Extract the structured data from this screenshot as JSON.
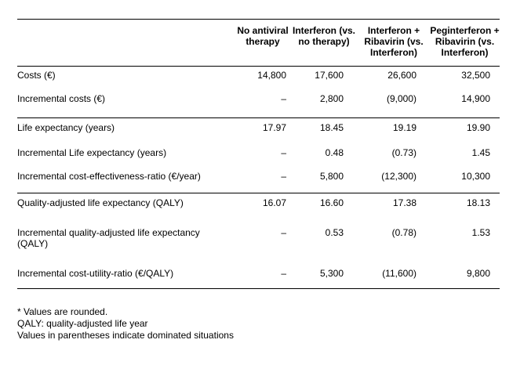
{
  "table": {
    "headers": [
      "",
      "No antiviral therapy",
      "Interferon (vs. no therapy)",
      "Interferon + Ribavirin (vs. Interferon)",
      "Peginterferon + Ribavirin (vs. Interferon)"
    ],
    "rows": [
      {
        "label": "Costs (€)",
        "values": [
          "14,800",
          "17,600",
          "26,600",
          "32,500"
        ]
      },
      {
        "label": "Incremental costs (€)",
        "values": [
          "–",
          "2,800",
          "(9,000)",
          "14,900"
        ]
      },
      {
        "label": "Life expectancy (years)",
        "values": [
          "17.97",
          "18.45",
          "19.19",
          "19.90"
        ]
      },
      {
        "label": "Incremental Life expectancy (years)",
        "values": [
          "–",
          "0.48",
          "(0.73)",
          "1.45"
        ]
      },
      {
        "label": "Incremental cost-effectiveness-ratio (€/year)",
        "values": [
          "–",
          "5,800",
          "(12,300)",
          "10,300"
        ]
      },
      {
        "label": "Quality-adjusted life expectancy (QALY)",
        "values": [
          "16.07",
          "16.60",
          "17.38",
          "18.13"
        ]
      },
      {
        "label": "Incremental quality-adjusted life expectancy (QALY)",
        "values": [
          "–",
          "0.53",
          "(0.78)",
          "1.53"
        ]
      },
      {
        "label": "Incremental cost-utility-ratio (€/QALY)",
        "values": [
          "–",
          "5,300",
          "(11,600)",
          "9,800"
        ]
      }
    ]
  },
  "footnotes": [
    "* Values are rounded.",
    "QALY: quality-adjusted life year",
    "Values in parentheses indicate dominated situations"
  ]
}
